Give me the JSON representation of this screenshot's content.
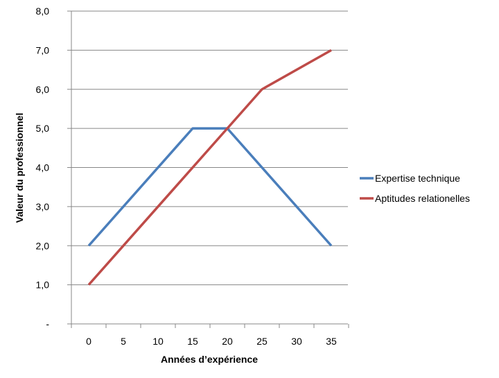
{
  "chart_data": {
    "type": "line",
    "title": "",
    "xlabel": "Années d’expérience",
    "ylabel": "Valeur du professionnel",
    "categories": [
      "0",
      "5",
      "10",
      "15",
      "20",
      "25",
      "30",
      "35"
    ],
    "x_values": [
      0,
      5,
      10,
      15,
      20,
      25,
      30,
      35
    ],
    "y_ticks": [
      0,
      1,
      2,
      3,
      4,
      5,
      6,
      7,
      8
    ],
    "y_tick_labels": [
      "-",
      "1,0",
      "2,0",
      "3,0",
      "4,0",
      "5,0",
      "6,0",
      "7,0",
      "8,0"
    ],
    "ylim": [
      0,
      8
    ],
    "grid": "horizontal",
    "legend_position": "right",
    "series": [
      {
        "name": "Expertise technique",
        "color": "#4a7ebb",
        "points": [
          [
            0,
            2
          ],
          [
            15,
            5
          ],
          [
            20,
            5
          ],
          [
            35,
            2
          ]
        ]
      },
      {
        "name": "Aptitudes relationelles",
        "color": "#be4b48",
        "points": [
          [
            0,
            1
          ],
          [
            20,
            5
          ],
          [
            25,
            6
          ],
          [
            35,
            7
          ]
        ]
      }
    ]
  }
}
